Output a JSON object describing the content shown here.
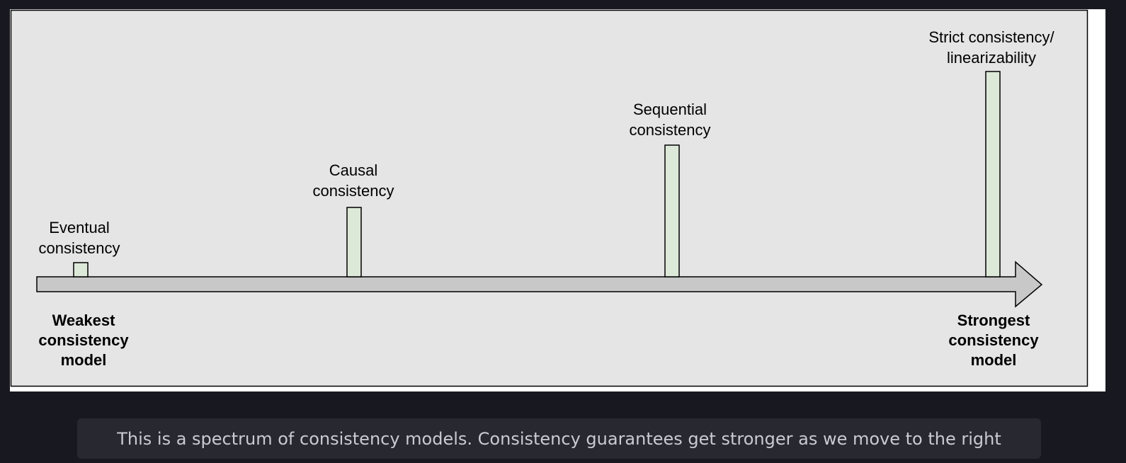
{
  "diagram": {
    "models": [
      {
        "label": "Eventual\nconsistency",
        "strength": 1
      },
      {
        "label": "Causal\nconsistency",
        "strength": 5
      },
      {
        "label": "Sequential\nconsistency",
        "strength": 9
      },
      {
        "label": "Strict consistency/\nlinearizability",
        "strength": 14
      }
    ],
    "weakest_label": "Weakest\nconsistency\nmodel",
    "strongest_label": "Strongest\nconsistency\nmodel",
    "colors": {
      "panel": "#e5e5e5",
      "bar_fill": "#dde9d8",
      "arrow_fill": "#c8c8c8",
      "stroke": "#000000"
    }
  },
  "caption": {
    "text": "This is a spectrum of consistency models. Consistency guarantees get stronger as we move to the right"
  }
}
